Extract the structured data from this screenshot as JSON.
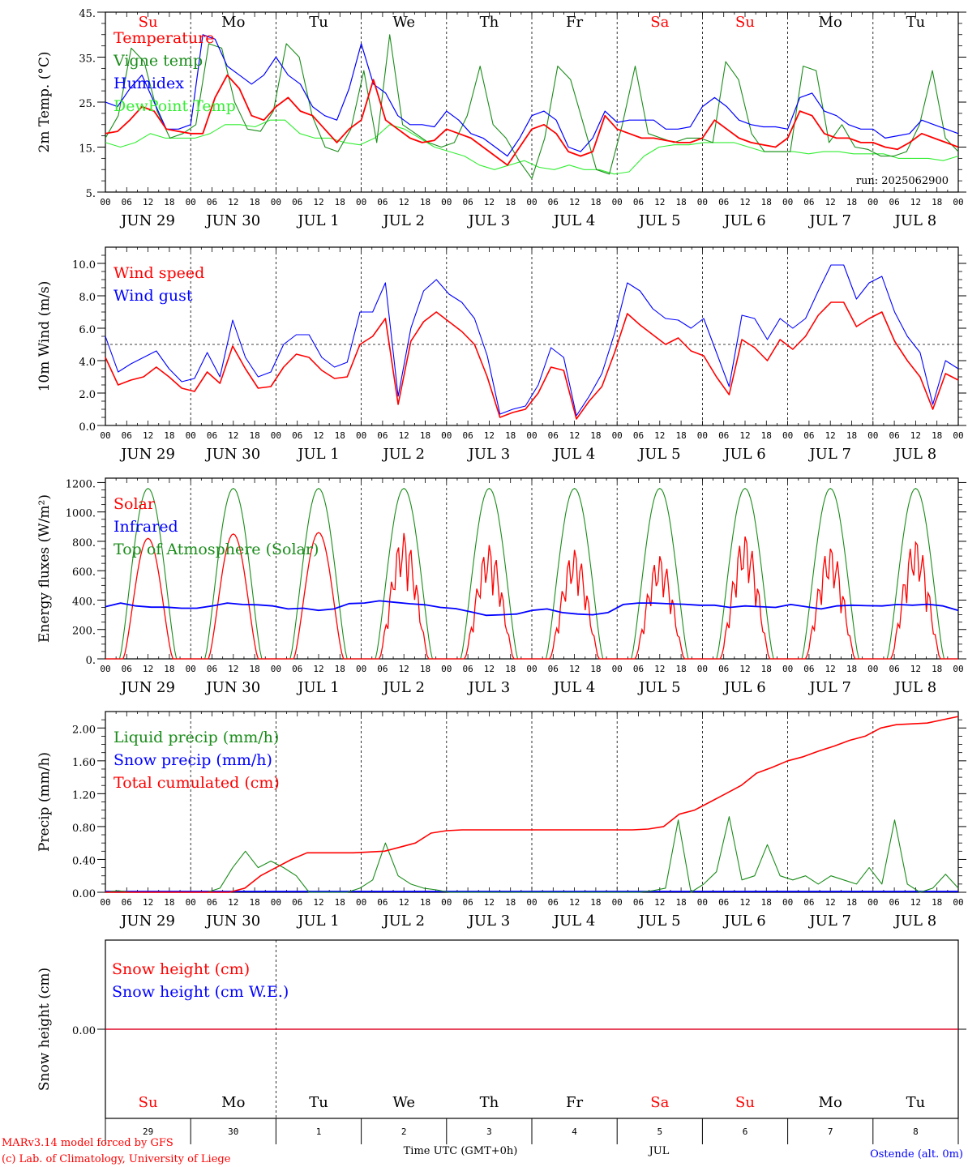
{
  "footer": {
    "credit1": "MARv3.14 model forced by GFS",
    "credit2": "(c) Lab. of Climatology, University of Liege",
    "xlabel": "Time UTC (GMT+0h)",
    "month": "JUL",
    "station": "Ostende (alt. 0m)"
  },
  "colors": {
    "red": "#ff0000",
    "green": "#1a8c1a",
    "blue": "#0000ff",
    "lime": "#33ee33",
    "grey": "#555555"
  },
  "chart_data": {
    "x_axis": {
      "start": "2025-06-29 00:00 UTC",
      "end": "2025-07-09 00:00 UTC",
      "hour_ticks": [
        "00",
        "06",
        "12",
        "18"
      ],
      "date_labels": [
        "JUN 29",
        "JUN 30",
        "JUL  1",
        "JUL  2",
        "JUL  3",
        "JUL  4",
        "JUL  5",
        "JUL  6",
        "JUL  7",
        "JUL  8"
      ],
      "weekdays": [
        {
          "label": "Su",
          "color": "#ff0000"
        },
        {
          "label": "Mo",
          "color": "#000000"
        },
        {
          "label": "Tu",
          "color": "#000000"
        },
        {
          "label": "We",
          "color": "#000000"
        },
        {
          "label": "Th",
          "color": "#000000"
        },
        {
          "label": "Fr",
          "color": "#000000"
        },
        {
          "label": "Sa",
          "color": "#ff0000"
        },
        {
          "label": "Su",
          "color": "#ff0000"
        },
        {
          "label": "Mo",
          "color": "#000000"
        },
        {
          "label": "Tu",
          "color": "#000000"
        }
      ],
      "day_numbers": [
        "29",
        "30",
        "1",
        "2",
        "3",
        "4",
        "5",
        "6",
        "7",
        "8"
      ]
    },
    "panels": [
      {
        "type": "line",
        "ylabel": "2m Temp. (°C)",
        "ylim": [
          5,
          45
        ],
        "yticks": [
          {
            "v": 5,
            "t": "5."
          },
          {
            "v": 15,
            "t": "15."
          },
          {
            "v": 25,
            "t": "25."
          },
          {
            "v": 35,
            "t": "35."
          },
          {
            "v": 45,
            "t": "45."
          }
        ],
        "annotation": "run: 2025062900",
        "series": [
          {
            "name": "Temperature",
            "color": "#ff0000",
            "values": [
              18,
              18.5,
              21,
              24,
              23,
              19,
              18.5,
              18,
              18,
              26,
              31,
              28,
              22,
              21,
              24,
              26,
              23,
              22,
              19,
              16,
              19,
              21,
              30,
              21,
              19,
              17,
              16,
              16.5,
              19,
              18,
              17,
              15,
              13,
              11,
              15,
              19,
              20,
              18,
              14,
              13,
              14,
              22,
              19,
              18,
              17,
              17,
              16.5,
              16,
              16,
              17,
              21,
              19,
              17,
              16,
              15.5,
              15,
              17,
              23,
              22,
              18,
              17,
              17,
              16,
              16,
              15,
              14.5,
              16,
              18,
              17,
              16,
              15
            ]
          },
          {
            "name": "Vigne temp",
            "color": "#1a8c1a",
            "values": [
              17,
              22,
              37,
              34,
              23,
              17,
              18,
              20,
              38,
              37,
              25,
              19,
              18.5,
              23,
              38,
              35,
              22,
              15,
              14,
              19,
              32,
              16,
              40,
              20,
              18,
              16,
              15,
              16,
              22,
              33,
              20,
              17,
              12,
              8,
              17,
              33,
              30,
              20,
              10,
              9,
              20,
              33,
              18,
              17,
              16,
              17,
              17,
              16,
              34,
              30,
              18,
              14,
              14,
              14,
              33,
              32,
              16,
              20,
              15,
              14.5,
              13,
              13,
              14,
              20,
              32,
              17,
              14
            ]
          },
          {
            "name": "Humidex",
            "color": "#0000ff",
            "values": [
              25,
              24,
              28,
              31,
              25,
              19,
              19,
              20,
              40,
              39,
              33,
              31,
              29,
              31,
              35,
              31,
              29,
              24,
              22,
              21,
              28,
              38,
              29,
              27,
              22,
              20,
              20,
              19.5,
              23,
              21,
              18,
              17,
              15,
              13,
              17,
              22,
              23,
              21,
              15,
              14,
              17,
              23,
              20.5,
              21,
              21,
              21,
              19,
              19,
              19.5,
              24,
              26,
              24,
              21,
              20,
              19.5,
              19.5,
              19,
              26,
              27,
              23,
              22,
              20,
              19,
              19,
              17,
              17.5,
              18,
              21,
              20,
              19,
              18
            ]
          },
          {
            "name": "DewPoint Temp",
            "color": "#33ee33",
            "values": [
              16,
              15,
              16,
              18,
              17,
              17,
              17,
              18,
              20,
              20,
              19.5,
              21,
              21,
              18,
              17,
              17,
              16,
              15.5,
              17,
              20,
              19,
              17,
              15,
              14,
              13,
              11,
              10,
              11,
              12,
              10.5,
              10,
              11,
              10,
              10,
              9,
              9.5,
              13,
              15,
              15.5,
              15.5,
              16,
              16,
              16,
              15,
              14,
              14,
              14,
              13.5,
              14,
              14,
              13.5,
              13.5,
              13.5,
              12.5,
              12.5,
              12.5,
              12,
              13
            ]
          }
        ]
      },
      {
        "type": "line",
        "ylabel": "10m Wind (m/s)",
        "ylim": [
          0,
          11
        ],
        "yticks": [
          {
            "v": 0,
            "t": "0.0"
          },
          {
            "v": 2,
            "t": "2.0"
          },
          {
            "v": 4,
            "t": "4.0"
          },
          {
            "v": 6,
            "t": "6.0"
          },
          {
            "v": 8,
            "t": "8.0"
          },
          {
            "v": 10,
            "t": "10.0"
          }
        ],
        "refline": 5,
        "series": [
          {
            "name": "Wind speed",
            "color": "#ff0000",
            "values": [
              4.2,
              2.5,
              2.8,
              3.0,
              3.6,
              3.0,
              2.3,
              2.1,
              3.3,
              2.6,
              4.9,
              3.5,
              2.3,
              2.4,
              3.6,
              4.4,
              4.2,
              3.4,
              2.9,
              3.0,
              5.0,
              5.5,
              6.6,
              1.3,
              5.2,
              6.4,
              7.0,
              6.4,
              5.8,
              5.0,
              3.0,
              0.5,
              0.8,
              1.0,
              2.0,
              3.6,
              3.4,
              0.4,
              1.5,
              2.4,
              4.5,
              6.9,
              6.2,
              5.6,
              5.0,
              5.4,
              4.6,
              4.3,
              3.0,
              1.9,
              5.3,
              4.8,
              4.0,
              5.3,
              4.7,
              5.5,
              6.8,
              7.6,
              7.6,
              6.1,
              6.6,
              7.0,
              5.2,
              4.0,
              3.0,
              1.0,
              3.2,
              2.8
            ]
          },
          {
            "name": "Wind gust",
            "color": "#0000ff",
            "values": [
              5.5,
              3.3,
              3.8,
              4.2,
              4.6,
              3.5,
              2.7,
              2.9,
              4.5,
              3.0,
              6.5,
              4.2,
              3.0,
              3.3,
              5.0,
              5.6,
              5.6,
              4.2,
              3.6,
              3.9,
              7.0,
              7.0,
              8.8,
              1.8,
              6.0,
              8.3,
              9.0,
              8.1,
              7.6,
              6.6,
              4.3,
              0.7,
              1.0,
              1.2,
              2.5,
              4.8,
              4.2,
              0.6,
              1.8,
              3.2,
              5.7,
              8.8,
              8.3,
              7.2,
              6.6,
              6.5,
              6.0,
              6.6,
              4.5,
              2.4,
              6.8,
              6.6,
              5.3,
              6.6,
              6.0,
              6.6,
              8.3,
              9.9,
              9.9,
              7.8,
              8.8,
              9.2,
              7.0,
              5.5,
              4.5,
              1.3,
              4.0,
              3.5
            ]
          }
        ]
      },
      {
        "type": "line",
        "ylabel": "Energy fluxes (W/m²)",
        "ylim": [
          0,
          1230
        ],
        "yticks": [
          {
            "v": 0,
            "t": "0."
          },
          {
            "v": 200,
            "t": "200."
          },
          {
            "v": 400,
            "t": "400."
          },
          {
            "v": 600,
            "t": "600."
          },
          {
            "v": 800,
            "t": "800."
          },
          {
            "v": 1000,
            "t": "1000."
          },
          {
            "v": 1200,
            "t": "1200."
          }
        ],
        "solar_peaks": [
          820,
          850,
          860,
          860,
          780,
          750,
          710,
          850,
          770,
          820
        ],
        "toa_peak": 1160,
        "series": [
          {
            "name": "Solar",
            "color": "#ff0000"
          },
          {
            "name": "Infrared",
            "color": "#0000ff",
            "values": [
              355,
              380,
              360,
              352,
              352,
              345,
              345,
              360,
              380,
              370,
              368,
              360,
              340,
              345,
              330,
              340,
              376,
              380,
              395,
              385,
              375,
              368,
              350,
              342,
              320,
              296,
              300,
              305,
              330,
              340,
              315,
              305,
              300,
              315,
              370,
              380,
              380,
              375,
              372,
              365,
              365,
              350,
              360,
              355,
              350,
              370,
              355,
              340,
              360,
              365,
              362,
              360,
              370,
              365,
              372,
              360,
              330
            ]
          },
          {
            "name": "Top of Atmosphere (Solar)",
            "color": "#1a8c1a"
          }
        ]
      },
      {
        "type": "line",
        "ylabel": "Precip (mm/h)",
        "ylim": [
          0,
          2.2
        ],
        "yticks": [
          {
            "v": 0,
            "t": "0.00"
          },
          {
            "v": 0.4,
            "t": "0.40"
          },
          {
            "v": 0.8,
            "t": "0.80"
          },
          {
            "v": 1.2,
            "t": "1.20"
          },
          {
            "v": 1.6,
            "t": "1.60"
          },
          {
            "v": 2.0,
            "t": "2.00"
          }
        ],
        "series": [
          {
            "name": "Liquid precip (mm/h)",
            "color": "#1a8c1a",
            "values": [
              0,
              0.02,
              0,
              0,
              0,
              0,
              0,
              0,
              0,
              0.05,
              0.3,
              0.5,
              0.3,
              0.38,
              0.3,
              0.2,
              0,
              0,
              0,
              0,
              0.05,
              0.15,
              0.6,
              0.2,
              0.1,
              0.05,
              0.03,
              0,
              0,
              0,
              0,
              0,
              0,
              0,
              0,
              0,
              0,
              0,
              0,
              0,
              0,
              0,
              0,
              0.02,
              0.05,
              0.88,
              0,
              0.1,
              0.25,
              0.92,
              0.15,
              0.2,
              0.58,
              0.2,
              0.15,
              0.2,
              0.1,
              0.2,
              0.15,
              0.1,
              0.3,
              0.1,
              0.88,
              0.1,
              0,
              0.05,
              0.22,
              0.05
            ]
          },
          {
            "name": "Snow precip (mm/h)",
            "color": "#0000ff"
          },
          {
            "name": "Total cumulated (cm)",
            "color": "#ff0000",
            "values": [
              0,
              0,
              0,
              0,
              0,
              0,
              0,
              0,
              0,
              0.05,
              0.2,
              0.3,
              0.4,
              0.48,
              0.48,
              0.48,
              0.48,
              0.49,
              0.5,
              0.55,
              0.6,
              0.72,
              0.75,
              0.76,
              0.76,
              0.76,
              0.76,
              0.76,
              0.76,
              0.76,
              0.76,
              0.76,
              0.76,
              0.76,
              0.76,
              0.77,
              0.8,
              0.95,
              1.0,
              1.1,
              1.2,
              1.3,
              1.45,
              1.52,
              1.6,
              1.65,
              1.72,
              1.78,
              1.85,
              1.9,
              2.0,
              2.04,
              2.05,
              2.06,
              2.1,
              2.14
            ]
          }
        ]
      },
      {
        "type": "line",
        "ylabel": "Snow height (cm)",
        "ylim": [
          -1,
          1
        ],
        "yticks": [
          {
            "v": 0,
            "t": "0.00"
          }
        ],
        "series": [
          {
            "name": "Snow height (cm)",
            "color": "#ff0000",
            "values": [
              0,
              0
            ]
          },
          {
            "name": "Snow height (cm W.E.)",
            "color": "#0000ff",
            "values": [
              0,
              0
            ]
          }
        ]
      }
    ]
  }
}
